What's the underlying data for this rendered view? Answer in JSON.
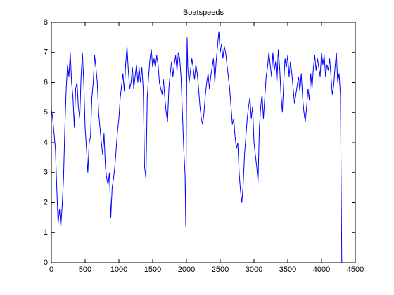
{
  "chart_data": {
    "type": "line",
    "title": "Boatspeeds",
    "x": [
      0,
      20,
      40,
      60,
      80,
      100,
      120,
      140,
      160,
      180,
      200,
      220,
      240,
      260,
      280,
      300,
      320,
      340,
      360,
      380,
      400,
      420,
      440,
      460,
      480,
      500,
      520,
      540,
      560,
      580,
      600,
      620,
      640,
      660,
      680,
      700,
      720,
      740,
      760,
      780,
      800,
      820,
      840,
      860,
      880,
      900,
      920,
      940,
      960,
      980,
      1000,
      1020,
      1040,
      1060,
      1080,
      1100,
      1120,
      1140,
      1160,
      1180,
      1200,
      1220,
      1240,
      1260,
      1280,
      1300,
      1320,
      1340,
      1360,
      1380,
      1400,
      1420,
      1440,
      1460,
      1480,
      1500,
      1520,
      1540,
      1560,
      1580,
      1600,
      1620,
      1640,
      1660,
      1680,
      1700,
      1720,
      1740,
      1760,
      1780,
      1800,
      1820,
      1840,
      1860,
      1880,
      1900,
      1920,
      1940,
      1960,
      1980,
      1990,
      2000,
      2010,
      2020,
      2040,
      2060,
      2080,
      2100,
      2120,
      2140,
      2160,
      2180,
      2200,
      2220,
      2240,
      2260,
      2280,
      2300,
      2320,
      2340,
      2360,
      2380,
      2400,
      2420,
      2440,
      2460,
      2480,
      2500,
      2520,
      2540,
      2560,
      2580,
      2600,
      2620,
      2640,
      2660,
      2680,
      2700,
      2720,
      2740,
      2760,
      2780,
      2800,
      2820,
      2840,
      2860,
      2880,
      2900,
      2920,
      2940,
      2960,
      2980,
      3000,
      3020,
      3040,
      3060,
      3080,
      3100,
      3120,
      3140,
      3160,
      3180,
      3200,
      3220,
      3240,
      3260,
      3280,
      3300,
      3320,
      3340,
      3360,
      3380,
      3400,
      3420,
      3440,
      3460,
      3480,
      3500,
      3520,
      3540,
      3560,
      3580,
      3600,
      3620,
      3640,
      3660,
      3680,
      3700,
      3720,
      3740,
      3760,
      3780,
      3800,
      3820,
      3840,
      3860,
      3880,
      3900,
      3920,
      3940,
      3960,
      3980,
      4000,
      4020,
      4040,
      4060,
      4080,
      4100,
      4120,
      4140,
      4160,
      4180,
      4200,
      4220,
      4240,
      4260,
      4280,
      4300
    ],
    "series": [
      {
        "name": "Boatspeed",
        "color": "#0000ff",
        "values": [
          5.1,
          4.8,
          4.3,
          3.8,
          2.5,
          1.3,
          1.8,
          1.2,
          1.9,
          2.8,
          4.5,
          5.8,
          6.6,
          6.2,
          7.0,
          6.0,
          5.5,
          4.5,
          5.8,
          6.0,
          5.2,
          4.8,
          6.2,
          7.0,
          6.0,
          4.5,
          3.8,
          3.0,
          4.0,
          4.2,
          5.5,
          6.0,
          6.9,
          6.5,
          6.0,
          5.0,
          4.5,
          4.0,
          3.6,
          4.3,
          3.2,
          2.8,
          2.6,
          3.0,
          1.5,
          2.5,
          2.8,
          3.2,
          3.8,
          4.4,
          4.8,
          5.5,
          5.9,
          6.3,
          5.7,
          6.6,
          7.2,
          6.4,
          5.8,
          6.0,
          6.5,
          5.8,
          6.2,
          6.6,
          6.0,
          6.5,
          6.0,
          6.5,
          5.8,
          3.2,
          2.8,
          5.5,
          6.2,
          6.8,
          7.1,
          6.5,
          6.8,
          6.5,
          6.9,
          6.6,
          6.0,
          5.8,
          5.6,
          6.1,
          5.5,
          5.0,
          4.7,
          5.8,
          6.3,
          6.7,
          6.2,
          6.6,
          6.9,
          6.4,
          7.0,
          6.8,
          6.2,
          5.0,
          3.8,
          2.9,
          1.2,
          5.0,
          7.5,
          6.5,
          6.0,
          6.4,
          6.8,
          6.5,
          6.1,
          6.6,
          6.3,
          5.8,
          5.2,
          4.8,
          4.6,
          5.0,
          5.6,
          6.0,
          6.3,
          5.8,
          6.2,
          6.5,
          6.8,
          6.0,
          6.7,
          7.2,
          7.7,
          7.0,
          7.3,
          6.8,
          7.2,
          7.0,
          6.6,
          6.2,
          5.8,
          5.2,
          4.6,
          4.8,
          4.2,
          3.8,
          4.0,
          3.0,
          2.4,
          2.0,
          2.6,
          3.6,
          4.2,
          4.8,
          5.2,
          5.5,
          4.8,
          5.2,
          4.0,
          3.6,
          3.2,
          2.7,
          4.5,
          5.2,
          5.6,
          4.8,
          5.5,
          6.2,
          6.5,
          7.0,
          6.6,
          6.2,
          7.0,
          6.4,
          6.7,
          6.0,
          7.1,
          6.5,
          5.6,
          5.0,
          6.0,
          6.8,
          6.5,
          6.9,
          6.2,
          6.7,
          6.3,
          5.8,
          5.3,
          5.6,
          5.9,
          6.2,
          5.7,
          6.3,
          5.5,
          5.0,
          4.7,
          5.2,
          5.8,
          5.4,
          6.3,
          5.8,
          6.5,
          6.9,
          6.4,
          6.8,
          6.5,
          6.2,
          7.0,
          6.6,
          6.9,
          6.2,
          6.6,
          6.4,
          6.8,
          6.2,
          5.6,
          5.9,
          6.5,
          7.0,
          6.0,
          6.3,
          5.6,
          0
        ]
      }
    ],
    "xlim": [
      0,
      4500
    ],
    "xticks": [
      0,
      500,
      1000,
      1500,
      2000,
      2500,
      3000,
      3500,
      4000,
      4500
    ],
    "ylim": [
      0,
      8
    ],
    "yticks": [
      0,
      1,
      2,
      3,
      4,
      5,
      6,
      7,
      8
    ]
  }
}
